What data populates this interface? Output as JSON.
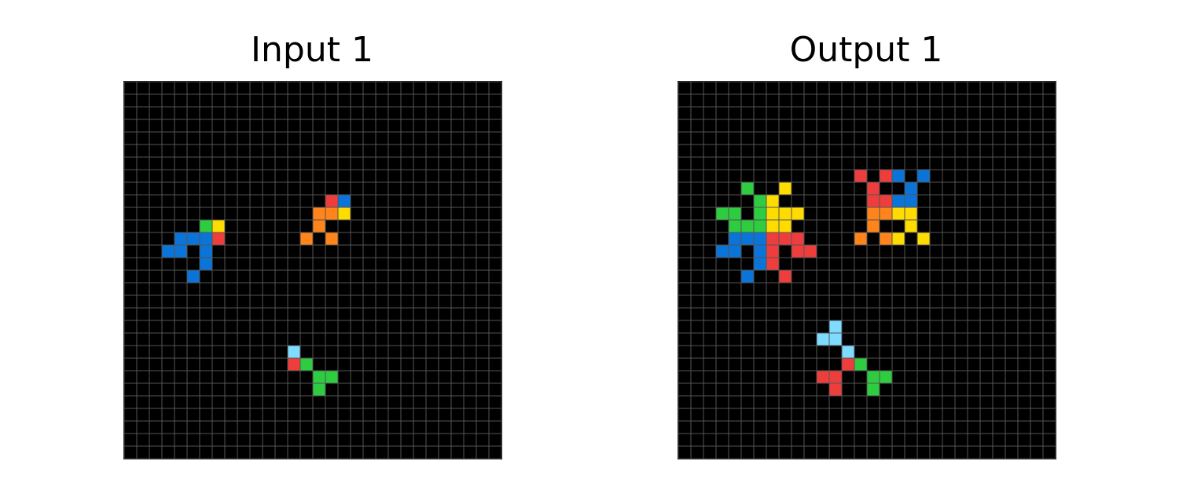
{
  "panels": [
    {
      "title": "Input 1",
      "rows": 30,
      "cols": 30,
      "cells": [
        {
          "r": 9,
          "c": 16,
          "color": "red"
        },
        {
          "r": 9,
          "c": 17,
          "color": "blue"
        },
        {
          "r": 10,
          "c": 15,
          "color": "orange"
        },
        {
          "r": 10,
          "c": 16,
          "color": "orange"
        },
        {
          "r": 10,
          "c": 17,
          "color": "yellow"
        },
        {
          "r": 11,
          "c": 6,
          "color": "green"
        },
        {
          "r": 11,
          "c": 7,
          "color": "yellow"
        },
        {
          "r": 11,
          "c": 15,
          "color": "orange"
        },
        {
          "r": 12,
          "c": 4,
          "color": "blue"
        },
        {
          "r": 12,
          "c": 5,
          "color": "blue"
        },
        {
          "r": 12,
          "c": 6,
          "color": "blue"
        },
        {
          "r": 12,
          "c": 7,
          "color": "red"
        },
        {
          "r": 12,
          "c": 14,
          "color": "orange"
        },
        {
          "r": 12,
          "c": 16,
          "color": "orange"
        },
        {
          "r": 13,
          "c": 3,
          "color": "blue"
        },
        {
          "r": 13,
          "c": 4,
          "color": "blue"
        },
        {
          "r": 13,
          "c": 6,
          "color": "blue"
        },
        {
          "r": 14,
          "c": 6,
          "color": "blue"
        },
        {
          "r": 15,
          "c": 5,
          "color": "blue"
        },
        {
          "r": 21,
          "c": 13,
          "color": "lightblue"
        },
        {
          "r": 22,
          "c": 13,
          "color": "red"
        },
        {
          "r": 22,
          "c": 14,
          "color": "green"
        },
        {
          "r": 23,
          "c": 15,
          "color": "green"
        },
        {
          "r": 23,
          "c": 16,
          "color": "green"
        },
        {
          "r": 24,
          "c": 15,
          "color": "green"
        }
      ]
    },
    {
      "title": "Output 1",
      "rows": 30,
      "cols": 30,
      "cells": [
        {
          "r": 7,
          "c": 14,
          "color": "red"
        },
        {
          "r": 7,
          "c": 16,
          "color": "red"
        },
        {
          "r": 7,
          "c": 17,
          "color": "blue"
        },
        {
          "r": 7,
          "c": 19,
          "color": "blue"
        },
        {
          "r": 8,
          "c": 5,
          "color": "green"
        },
        {
          "r": 8,
          "c": 8,
          "color": "yellow"
        },
        {
          "r": 8,
          "c": 15,
          "color": "red"
        },
        {
          "r": 8,
          "c": 18,
          "color": "blue"
        },
        {
          "r": 9,
          "c": 6,
          "color": "green"
        },
        {
          "r": 9,
          "c": 7,
          "color": "yellow"
        },
        {
          "r": 9,
          "c": 15,
          "color": "red"
        },
        {
          "r": 9,
          "c": 16,
          "color": "red"
        },
        {
          "r": 9,
          "c": 17,
          "color": "blue"
        },
        {
          "r": 9,
          "c": 18,
          "color": "blue"
        },
        {
          "r": 10,
          "c": 3,
          "color": "green"
        },
        {
          "r": 10,
          "c": 4,
          "color": "green"
        },
        {
          "r": 10,
          "c": 6,
          "color": "green"
        },
        {
          "r": 10,
          "c": 7,
          "color": "yellow"
        },
        {
          "r": 10,
          "c": 8,
          "color": "yellow"
        },
        {
          "r": 10,
          "c": 9,
          "color": "yellow"
        },
        {
          "r": 10,
          "c": 15,
          "color": "orange"
        },
        {
          "r": 10,
          "c": 16,
          "color": "orange"
        },
        {
          "r": 10,
          "c": 17,
          "color": "yellow"
        },
        {
          "r": 10,
          "c": 18,
          "color": "yellow"
        },
        {
          "r": 11,
          "c": 4,
          "color": "green"
        },
        {
          "r": 11,
          "c": 5,
          "color": "green"
        },
        {
          "r": 11,
          "c": 6,
          "color": "green"
        },
        {
          "r": 11,
          "c": 7,
          "color": "yellow"
        },
        {
          "r": 11,
          "c": 8,
          "color": "yellow"
        },
        {
          "r": 11,
          "c": 15,
          "color": "orange"
        },
        {
          "r": 11,
          "c": 18,
          "color": "yellow"
        },
        {
          "r": 12,
          "c": 4,
          "color": "blue"
        },
        {
          "r": 12,
          "c": 5,
          "color": "blue"
        },
        {
          "r": 12,
          "c": 6,
          "color": "blue"
        },
        {
          "r": 12,
          "c": 7,
          "color": "red"
        },
        {
          "r": 12,
          "c": 8,
          "color": "red"
        },
        {
          "r": 12,
          "c": 9,
          "color": "red"
        },
        {
          "r": 12,
          "c": 14,
          "color": "orange"
        },
        {
          "r": 12,
          "c": 16,
          "color": "orange"
        },
        {
          "r": 12,
          "c": 17,
          "color": "yellow"
        },
        {
          "r": 12,
          "c": 19,
          "color": "yellow"
        },
        {
          "r": 13,
          "c": 3,
          "color": "blue"
        },
        {
          "r": 13,
          "c": 4,
          "color": "blue"
        },
        {
          "r": 13,
          "c": 6,
          "color": "blue"
        },
        {
          "r": 13,
          "c": 7,
          "color": "red"
        },
        {
          "r": 13,
          "c": 9,
          "color": "red"
        },
        {
          "r": 13,
          "c": 10,
          "color": "red"
        },
        {
          "r": 14,
          "c": 6,
          "color": "blue"
        },
        {
          "r": 14,
          "c": 7,
          "color": "red"
        },
        {
          "r": 15,
          "c": 5,
          "color": "blue"
        },
        {
          "r": 15,
          "c": 8,
          "color": "red"
        },
        {
          "r": 19,
          "c": 12,
          "color": "lightblue"
        },
        {
          "r": 20,
          "c": 11,
          "color": "lightblue"
        },
        {
          "r": 20,
          "c": 12,
          "color": "lightblue"
        },
        {
          "r": 21,
          "c": 13,
          "color": "lightblue"
        },
        {
          "r": 22,
          "c": 13,
          "color": "red"
        },
        {
          "r": 22,
          "c": 14,
          "color": "green"
        },
        {
          "r": 23,
          "c": 11,
          "color": "red"
        },
        {
          "r": 23,
          "c": 12,
          "color": "red"
        },
        {
          "r": 23,
          "c": 15,
          "color": "green"
        },
        {
          "r": 23,
          "c": 16,
          "color": "green"
        },
        {
          "r": 24,
          "c": 12,
          "color": "red"
        },
        {
          "r": 24,
          "c": 15,
          "color": "green"
        }
      ]
    }
  ],
  "palette": {
    "background": "#000000",
    "gridline": "#555555",
    "red": "#ee3d3d",
    "blue": "#0a74d9",
    "green": "#2ecc40",
    "yellow": "#ffdc00",
    "orange": "#ff851b",
    "lightblue": "#7fdbff"
  }
}
